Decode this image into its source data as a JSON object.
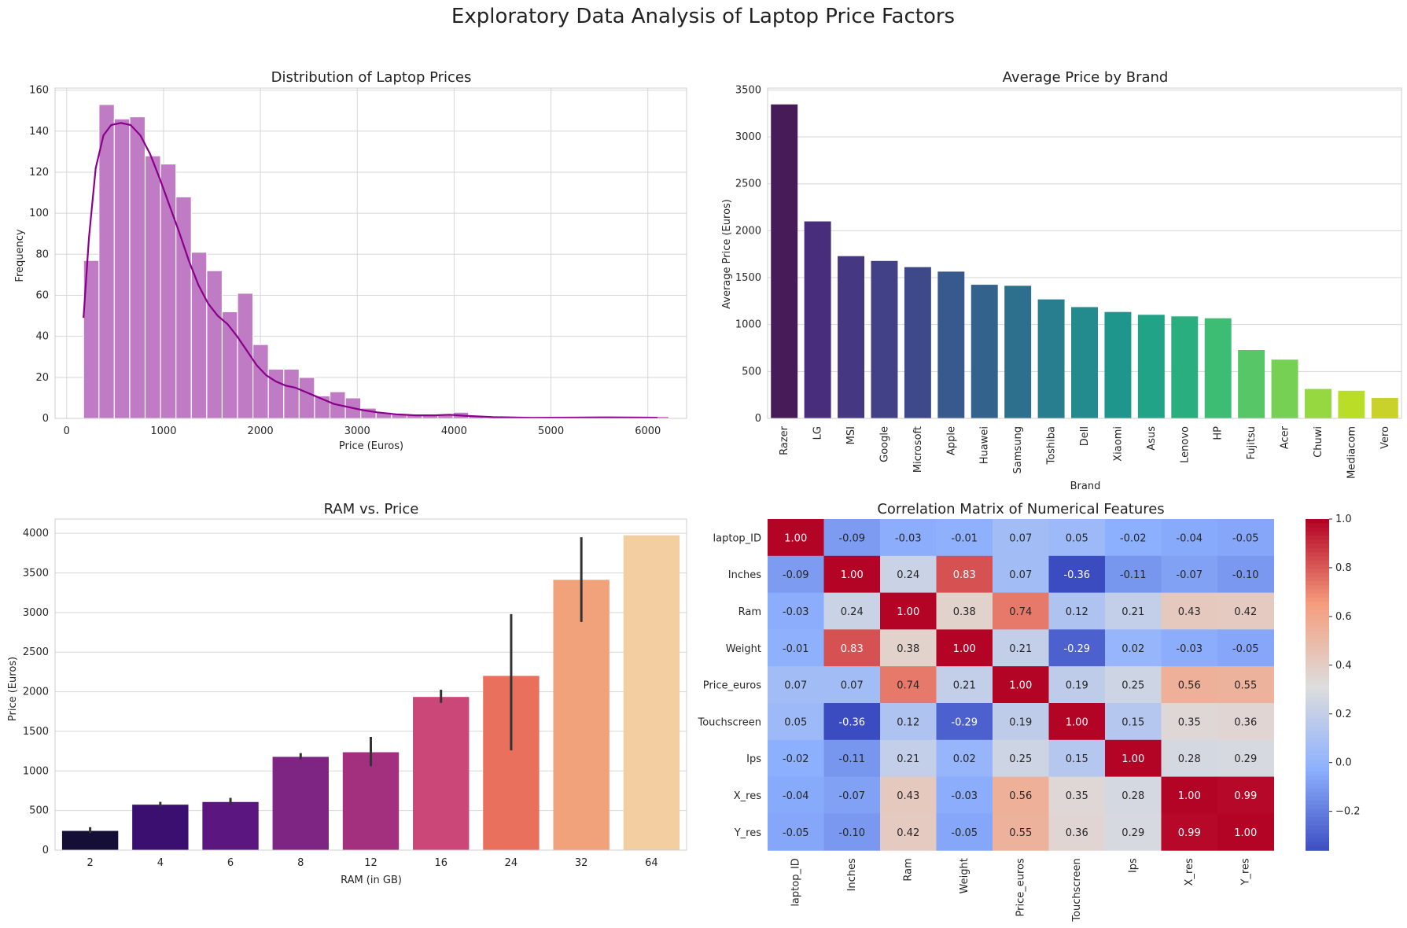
{
  "title": "Exploratory Data Analysis of Laptop Price Factors",
  "chart_data": [
    {
      "type": "histogram",
      "title": "Distribution of Laptop Prices",
      "xlabel": "Price (Euros)",
      "ylabel": "Frequency",
      "xlim": [
        -120,
        6400
      ],
      "ylim": [
        0,
        161
      ],
      "xticks": [
        0,
        1000,
        2000,
        3000,
        4000,
        5000,
        6000
      ],
      "yticks": [
        0,
        20,
        40,
        60,
        80,
        100,
        120,
        140,
        160
      ],
      "bin_start": 174,
      "bin_width": 159,
      "counts": [
        77,
        153,
        146,
        147,
        128,
        124,
        108,
        81,
        72,
        52,
        61,
        36,
        24,
        24,
        20,
        11,
        13,
        10,
        5,
        3,
        2,
        2,
        2,
        2,
        3,
        1,
        0,
        0,
        0,
        0,
        0,
        0,
        0,
        0,
        0,
        0,
        0,
        1
      ],
      "bar_color": "#bf7bc3",
      "kde_color": "#8b008b",
      "kde_curve": [
        [
          174,
          49
        ],
        [
          230,
          88
        ],
        [
          300,
          122
        ],
        [
          380,
          138
        ],
        [
          460,
          143
        ],
        [
          560,
          144
        ],
        [
          660,
          143
        ],
        [
          760,
          138
        ],
        [
          860,
          129
        ],
        [
          960,
          117
        ],
        [
          1060,
          104
        ],
        [
          1160,
          91
        ],
        [
          1260,
          77
        ],
        [
          1360,
          65
        ],
        [
          1460,
          56
        ],
        [
          1560,
          50
        ],
        [
          1660,
          46
        ],
        [
          1760,
          40
        ],
        [
          1860,
          33
        ],
        [
          1960,
          26
        ],
        [
          2060,
          21
        ],
        [
          2160,
          18
        ],
        [
          2260,
          16
        ],
        [
          2360,
          15
        ],
        [
          2460,
          13
        ],
        [
          2560,
          11
        ],
        [
          2660,
          9
        ],
        [
          2760,
          7
        ],
        [
          2860,
          6
        ],
        [
          2960,
          5
        ],
        [
          3060,
          4
        ],
        [
          3200,
          3
        ],
        [
          3400,
          2
        ],
        [
          3600,
          1.5
        ],
        [
          3800,
          1.5
        ],
        [
          3950,
          1.8
        ],
        [
          4100,
          1.3
        ],
        [
          4400,
          0.6
        ],
        [
          4800,
          0.3
        ],
        [
          5200,
          0.4
        ],
        [
          5600,
          0.5
        ],
        [
          6000,
          0.4
        ],
        [
          6100,
          0.3
        ]
      ]
    },
    {
      "type": "bar",
      "title": "Average Price by Brand",
      "xlabel": "Brand",
      "ylabel": "Average Price (Euros)",
      "ylim": [
        0,
        3520
      ],
      "yticks": [
        0,
        500,
        1000,
        1500,
        2000,
        2500,
        3000,
        3500
      ],
      "categories": [
        "Razer",
        "LG",
        "MSI",
        "Google",
        "Microsoft",
        "Apple",
        "Huawei",
        "Samsung",
        "Toshiba",
        "Dell",
        "Xiaomi",
        "Asus",
        "Lenovo",
        "HP",
        "Fujitsu",
        "Acer",
        "Chuwi",
        "Mediacom",
        "Vero"
      ],
      "values": [
        3346,
        2099,
        1729,
        1678,
        1612,
        1564,
        1424,
        1413,
        1268,
        1186,
        1134,
        1104,
        1087,
        1067,
        729,
        626,
        314,
        295,
        218
      ],
      "colors": [
        "#461b57",
        "#472d7b",
        "#453781",
        "#424086",
        "#3e4989",
        "#38598c",
        "#33638d",
        "#2d708e",
        "#287d8e",
        "#238a8d",
        "#1f968b",
        "#20a386",
        "#29af7f",
        "#3dbc74",
        "#56c667",
        "#75d054",
        "#95d840",
        "#bade28",
        "#c9d22a"
      ]
    },
    {
      "type": "bar",
      "title": "RAM vs. Price",
      "xlabel": "RAM (in GB)",
      "ylabel": "Price (Euros)",
      "ylim": [
        0,
        4180
      ],
      "yticks": [
        0,
        500,
        1000,
        1500,
        2000,
        2500,
        3000,
        3500,
        4000
      ],
      "categories": [
        "2",
        "4",
        "6",
        "8",
        "12",
        "16",
        "24",
        "32",
        "64"
      ],
      "values": [
        243,
        574,
        608,
        1178,
        1236,
        1934,
        2200,
        3413,
        3975
      ],
      "error_low": [
        214,
        548,
        570,
        1147,
        1060,
        1860,
        1260,
        2880,
        3975
      ],
      "error_high": [
        290,
        610,
        660,
        1225,
        1430,
        2025,
        2980,
        3950,
        3975
      ],
      "colors": [
        "#150e37",
        "#3b0f70",
        "#5c167f",
        "#7e2482",
        "#a3307e",
        "#cb4778",
        "#e8705d",
        "#f1a27a",
        "#f2cea0"
      ],
      "error_color": "#333333"
    },
    {
      "type": "heatmap",
      "title": "Correlation Matrix of Numerical Features",
      "labels": [
        "laptop_ID",
        "Inches",
        "Ram",
        "Weight",
        "Price_euros",
        "Touchscreen",
        "Ips",
        "X_res",
        "Y_res"
      ],
      "matrix": [
        [
          1.0,
          -0.09,
          -0.03,
          -0.01,
          0.07,
          0.05,
          -0.02,
          -0.04,
          -0.05
        ],
        [
          -0.09,
          1.0,
          0.24,
          0.83,
          0.07,
          -0.36,
          -0.11,
          -0.07,
          -0.1
        ],
        [
          -0.03,
          0.24,
          1.0,
          0.38,
          0.74,
          0.12,
          0.21,
          0.43,
          0.42
        ],
        [
          -0.01,
          0.83,
          0.38,
          1.0,
          0.21,
          -0.29,
          0.02,
          -0.03,
          -0.05
        ],
        [
          0.07,
          0.07,
          0.74,
          0.21,
          1.0,
          0.19,
          0.25,
          0.56,
          0.55
        ],
        [
          0.05,
          -0.36,
          0.12,
          -0.29,
          0.19,
          1.0,
          0.15,
          0.35,
          0.36
        ],
        [
          -0.02,
          -0.11,
          0.21,
          0.02,
          0.25,
          0.15,
          1.0,
          0.28,
          0.29
        ],
        [
          -0.04,
          -0.07,
          0.43,
          -0.03,
          0.56,
          0.35,
          0.28,
          1.0,
          0.99
        ],
        [
          -0.05,
          -0.1,
          0.42,
          -0.05,
          0.55,
          0.36,
          0.29,
          0.99,
          1.0
        ]
      ],
      "cell_labels": [
        [
          "1.00",
          "-0.09",
          "-0.03",
          "-0.01",
          "0.07",
          "0.05",
          "-0.02",
          "-0.04",
          "-0.05"
        ],
        [
          "-0.09",
          "1.00",
          "0.24",
          "0.83",
          "0.07",
          "-0.36",
          "-0.11",
          "-0.07",
          "-0.10"
        ],
        [
          "-0.03",
          "0.24",
          "1.00",
          "0.38",
          "0.74",
          "0.12",
          "0.21",
          "0.43",
          "0.42"
        ],
        [
          "-0.01",
          "0.83",
          "0.38",
          "1.00",
          "0.21",
          "-0.29",
          "0.02",
          "-0.03",
          "-0.05"
        ],
        [
          "0.07",
          "0.07",
          "0.74",
          "0.21",
          "1.00",
          "0.19",
          "0.25",
          "0.56",
          "0.55"
        ],
        [
          "0.05",
          "-0.36",
          "0.12",
          "-0.29",
          "0.19",
          "1.00",
          "0.15",
          "0.35",
          "0.36"
        ],
        [
          "-0.02",
          "-0.11",
          "0.21",
          "0.02",
          "0.25",
          "0.15",
          "1.00",
          "0.28",
          "0.29"
        ],
        [
          "-0.04",
          "-0.07",
          "0.43",
          "-0.03",
          "0.56",
          "0.35",
          "0.28",
          "1.00",
          "0.99"
        ],
        [
          "-0.05",
          "-0.10",
          "0.42",
          "-0.05",
          "0.55",
          "0.36",
          "0.29",
          "0.99",
          "1.00"
        ]
      ],
      "colormap": "coolwarm",
      "vmin": -0.36,
      "vmax": 1.0,
      "colorbar_ticks": [
        -0.2,
        0.0,
        0.2,
        0.4,
        0.6,
        0.8,
        1.0
      ],
      "colorbar_tick_labels": [
        "−0.2",
        "0.0",
        "0.2",
        "0.4",
        "0.6",
        "0.8",
        "1.0"
      ]
    }
  ]
}
